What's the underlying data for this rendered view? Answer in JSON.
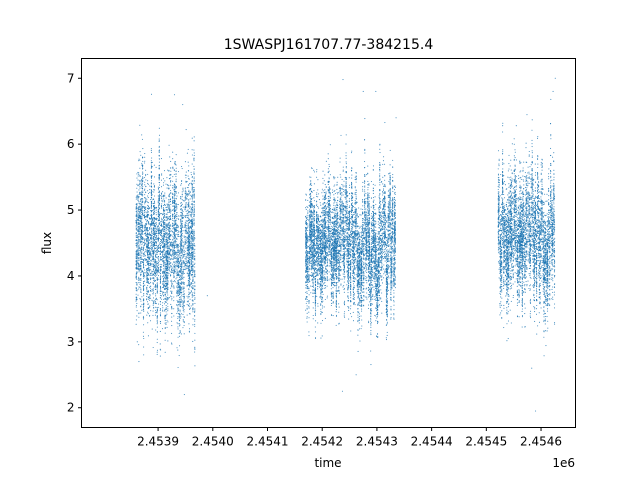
{
  "chart_data": {
    "type": "scatter",
    "title": "1SWASPJ161707.77-384215.4",
    "xlabel": "time",
    "ylabel": "flux",
    "x_offset_label": "1e6",
    "x_tick_labels": [
      "2.4539",
      "2.4540",
      "2.4541",
      "2.4542",
      "2.4543",
      "2.4544",
      "2.4545",
      "2.4546"
    ],
    "x_tick_values": [
      2453900,
      2454000,
      2454100,
      2454200,
      2454300,
      2454400,
      2454500,
      2454600
    ],
    "y_tick_values": [
      2,
      3,
      4,
      5,
      6,
      7
    ],
    "xlim": [
      2453760,
      2454663
    ],
    "ylim": [
      1.7,
      7.3
    ],
    "grid": false,
    "marker_color": "#1f77b4",
    "segments": [
      {
        "x_start": 2453860,
        "x_end": 2453968,
        "y_center": 4.45,
        "y_spread": 0.45
      },
      {
        "x_start": 2454170,
        "x_end": 2454334,
        "y_center": 4.45,
        "y_spread": 0.35
      },
      {
        "x_start": 2454522,
        "x_end": 2454625,
        "y_center": 4.55,
        "y_spread": 0.4
      }
    ],
    "notable_points": [
      {
        "x": 2453862,
        "y": 3.0
      },
      {
        "x": 2453865,
        "y": 2.7
      },
      {
        "x": 2453930,
        "y": 6.75
      },
      {
        "x": 2453945,
        "y": 6.6
      },
      {
        "x": 2453948,
        "y": 2.2
      },
      {
        "x": 2453990,
        "y": 3.7
      },
      {
        "x": 2454238,
        "y": 6.98
      },
      {
        "x": 2454237,
        "y": 2.25
      },
      {
        "x": 2454262,
        "y": 2.5
      },
      {
        "x": 2454275,
        "y": 6.8
      },
      {
        "x": 2454298,
        "y": 6.8
      },
      {
        "x": 2454335,
        "y": 6.4
      },
      {
        "x": 2454583,
        "y": 2.6
      },
      {
        "x": 2454590,
        "y": 1.95
      },
      {
        "x": 2454626,
        "y": 7.0
      },
      {
        "x": 2454622,
        "y": 6.8
      }
    ]
  }
}
